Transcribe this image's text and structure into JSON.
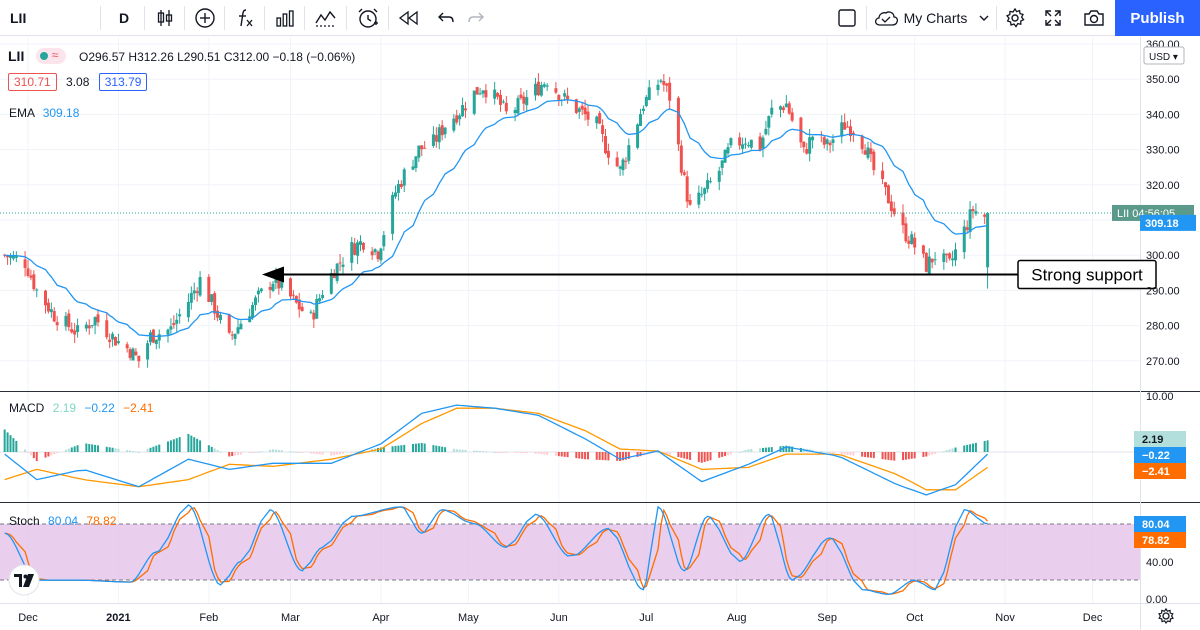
{
  "toolbar": {
    "symbol": "LII",
    "interval": "D",
    "my_charts_label": "My Charts",
    "publish_label": "Publish"
  },
  "legend": {
    "symbol": "LII",
    "ohlc": "O296.57 H312.26 L290.51 C312.00 −0.18 (−0.06%)",
    "bid": "310.71",
    "spread": "3.08",
    "ask": "313.79",
    "ema_label": "EMA",
    "ema_value": "309.18",
    "macd_label": "MACD",
    "macd_values": [
      "2.19",
      "−0.22",
      "−2.41"
    ],
    "stoch_label": "Stoch",
    "stoch_values": [
      "80.04",
      "78.82"
    ]
  },
  "price_axis": {
    "currency": "USD",
    "ticks": [
      "360.00",
      "350.00",
      "340.00",
      "330.00",
      "320.00",
      "310.00",
      "300.00",
      "290.00",
      "280.00",
      "270.00"
    ],
    "last_price_symbol": "LII",
    "countdown": "04:56:05",
    "ema_badge": "309.18"
  },
  "macd_axis": {
    "ticks": [
      "10.00"
    ],
    "badges": [
      "2.19",
      "−0.22",
      "−2.41"
    ]
  },
  "stoch_axis": {
    "ticks": [
      "80.00",
      "40.00",
      "0.00"
    ],
    "badges": [
      "80.04",
      "78.82"
    ]
  },
  "time_axis": [
    "Dec",
    "2021",
    "Feb",
    "Mar",
    "Apr",
    "May",
    "Jun",
    "Jul",
    "Aug",
    "Sep",
    "Oct",
    "Nov",
    "Dec"
  ],
  "annotation": {
    "text": "Strong support",
    "price": 294.5
  },
  "colors": {
    "up": "#26a69a",
    "down": "#ef5350",
    "ema": "#2196f3",
    "signal": "#ff9800",
    "stoch_band": "#e1bee7",
    "accent": "#2962ff"
  },
  "chart_data": {
    "type": "candlestick",
    "ylim": [
      265,
      360
    ],
    "anchors": [
      [
        "2020-11-23",
        300
      ],
      [
        "2020-11-30",
        298
      ],
      [
        "2020-12-04",
        290
      ],
      [
        "2020-12-10",
        283
      ],
      [
        "2020-12-18",
        278
      ],
      [
        "2020-12-24",
        282
      ],
      [
        "2020-12-31",
        276
      ],
      [
        "2021-01-05",
        273
      ],
      [
        "2021-01-08",
        270
      ],
      [
        "2021-01-12",
        277
      ],
      [
        "2021-01-19",
        279
      ],
      [
        "2021-01-25",
        287
      ],
      [
        "2021-01-29",
        293
      ],
      [
        "2021-02-03",
        285
      ],
      [
        "2021-02-08",
        276
      ],
      [
        "2021-02-12",
        281
      ],
      [
        "2021-02-18",
        288
      ],
      [
        "2021-02-23",
        293
      ],
      [
        "2021-02-26",
        291
      ],
      [
        "2021-03-03",
        286
      ],
      [
        "2021-03-08",
        282
      ],
      [
        "2021-03-12",
        290
      ],
      [
        "2021-03-16",
        296
      ],
      [
        "2021-03-22",
        302
      ],
      [
        "2021-03-26",
        304
      ],
      [
        "2021-03-31",
        301
      ],
      [
        "2021-04-06",
        318
      ],
      [
        "2021-04-09",
        323
      ],
      [
        "2021-04-14",
        330
      ],
      [
        "2021-04-19",
        332
      ],
      [
        "2021-04-23",
        337
      ],
      [
        "2021-04-28",
        341
      ],
      [
        "2021-05-03",
        346
      ],
      [
        "2021-05-06",
        348
      ],
      [
        "2021-05-11",
        344
      ],
      [
        "2021-05-14",
        340
      ],
      [
        "2021-05-19",
        343
      ],
      [
        "2021-05-24",
        347
      ],
      [
        "2021-05-28",
        350
      ],
      [
        "2021-06-02",
        345
      ],
      [
        "2021-06-08",
        341
      ],
      [
        "2021-06-14",
        337
      ],
      [
        "2021-06-17",
        331
      ],
      [
        "2021-06-22",
        324
      ],
      [
        "2021-06-25",
        331
      ],
      [
        "2021-06-30",
        343
      ],
      [
        "2021-07-06",
        350
      ],
      [
        "2021-07-09",
        345
      ],
      [
        "2021-07-14",
        321
      ],
      [
        "2021-07-16",
        313
      ],
      [
        "2021-07-21",
        318
      ],
      [
        "2021-07-26",
        324
      ],
      [
        "2021-07-30",
        331
      ],
      [
        "2021-08-04",
        333
      ],
      [
        "2021-08-09",
        331
      ],
      [
        "2021-08-13",
        341
      ],
      [
        "2021-08-18",
        343
      ],
      [
        "2021-08-24",
        329
      ],
      [
        "2021-08-27",
        334
      ],
      [
        "2021-09-01",
        331
      ],
      [
        "2021-09-07",
        337
      ],
      [
        "2021-09-10",
        336
      ],
      [
        "2021-09-14",
        331
      ],
      [
        "2021-09-17",
        324
      ],
      [
        "2021-09-22",
        316
      ],
      [
        "2021-09-27",
        307
      ],
      [
        "2021-09-30",
        304
      ],
      [
        "2021-10-05",
        297
      ],
      [
        "2021-10-08",
        300
      ],
      [
        "2021-10-13",
        297
      ],
      [
        "2021-10-18",
        307
      ],
      [
        "2021-10-21",
        313
      ],
      [
        "2021-10-25",
        311
      ],
      [
        "2021-10-26",
        312
      ]
    ],
    "macd_anchors": [
      [
        "2020-11-23",
        0.45,
        0.2
      ],
      [
        "2020-12-04",
        0.2,
        0.3
      ],
      [
        "2020-12-20",
        0.3,
        0.2
      ],
      [
        "2021-01-08",
        0.13,
        0.13
      ],
      [
        "2021-01-25",
        0.4,
        0.2
      ],
      [
        "2021-02-08",
        0.3,
        0.35
      ],
      [
        "2021-02-23",
        0.36,
        0.33
      ],
      [
        "2021-03-15",
        0.36,
        0.4
      ],
      [
        "2021-04-01",
        0.55,
        0.5
      ],
      [
        "2021-04-15",
        0.85,
        0.75
      ],
      [
        "2021-04-27",
        0.93,
        0.9
      ],
      [
        "2021-05-10",
        0.9,
        0.9
      ],
      [
        "2021-05-25",
        0.83,
        0.85
      ],
      [
        "2021-06-10",
        0.6,
        0.68
      ],
      [
        "2021-06-22",
        0.4,
        0.5
      ],
      [
        "2021-07-05",
        0.48,
        0.48
      ],
      [
        "2021-07-20",
        0.18,
        0.3
      ],
      [
        "2021-08-05",
        0.35,
        0.32
      ],
      [
        "2021-08-18",
        0.52,
        0.45
      ],
      [
        "2021-09-05",
        0.43,
        0.45
      ],
      [
        "2021-09-25",
        0.15,
        0.25
      ],
      [
        "2021-10-05",
        0.05,
        0.1
      ],
      [
        "2021-10-15",
        0.15,
        0.1
      ],
      [
        "2021-10-26",
        0.45,
        0.32
      ]
    ],
    "stoch_anchors": [
      [
        "2020-11-23",
        70
      ],
      [
        "2020-12-04",
        20
      ],
      [
        "2020-12-18",
        20
      ],
      [
        "2021-01-05",
        18
      ],
      [
        "2021-01-14",
        50
      ],
      [
        "2021-01-25",
        100
      ],
      [
        "2021-02-05",
        15
      ],
      [
        "2021-02-12",
        40
      ],
      [
        "2021-02-22",
        95
      ],
      [
        "2021-03-05",
        30
      ],
      [
        "2021-03-12",
        55
      ],
      [
        "2021-03-22",
        88
      ],
      [
        "2021-04-08",
        98
      ],
      [
        "2021-04-15",
        70
      ],
      [
        "2021-04-22",
        95
      ],
      [
        "2021-05-03",
        80
      ],
      [
        "2021-05-14",
        55
      ],
      [
        "2021-05-24",
        90
      ],
      [
        "2021-06-05",
        45
      ],
      [
        "2021-06-18",
        75
      ],
      [
        "2021-06-30",
        10
      ],
      [
        "2021-07-05",
        98
      ],
      [
        "2021-07-14",
        30
      ],
      [
        "2021-07-22",
        88
      ],
      [
        "2021-08-02",
        40
      ],
      [
        "2021-08-12",
        90
      ],
      [
        "2021-08-20",
        20
      ],
      [
        "2021-09-02",
        65
      ],
      [
        "2021-09-13",
        10
      ],
      [
        "2021-09-22",
        5
      ],
      [
        "2021-10-01",
        20
      ],
      [
        "2021-10-08",
        10
      ],
      [
        "2021-10-18",
        95
      ],
      [
        "2021-10-26",
        80
      ]
    ]
  }
}
